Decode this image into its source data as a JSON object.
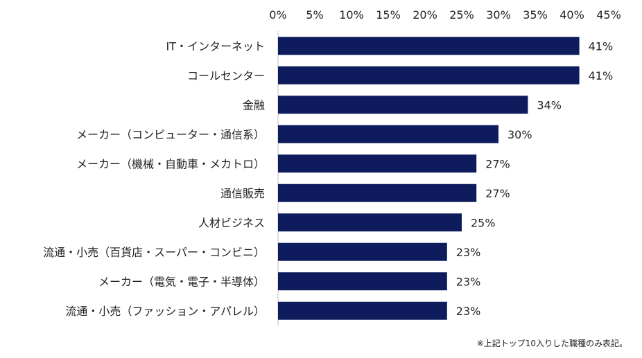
{
  "chart_data": {
    "type": "bar",
    "orientation": "horizontal",
    "title": "",
    "xlabel": "",
    "ylabel": "",
    "xlim": [
      0,
      45
    ],
    "x_ticks": [
      "0%",
      "5%",
      "10%",
      "15%",
      "20%",
      "25%",
      "30%",
      "35%",
      "40%",
      "45%"
    ],
    "x_axis_position": "top",
    "grid": false,
    "legend": "none",
    "categories": [
      "IT・インターネット",
      "コールセンター",
      "金融",
      "メーカー（コンピューター・通信系）",
      "メーカー（機械・自動車・メカトロ）",
      "通信販売",
      "人材ビジネス",
      "流通・小売（百貨店・スーパー・コンビニ）",
      "メーカー（電気・電子・半導体）",
      "流通・小売（ファッション・アパレル）"
    ],
    "values": [
      41,
      41,
      34,
      30,
      27,
      27,
      25,
      23,
      23,
      23
    ],
    "value_labels": [
      "41%",
      "41%",
      "34%",
      "30%",
      "27%",
      "27%",
      "25%",
      "23%",
      "23%",
      "23%"
    ],
    "bar_color": "#0e1c5e",
    "note": "※上記トップ10入りした職種のみ表記。"
  }
}
